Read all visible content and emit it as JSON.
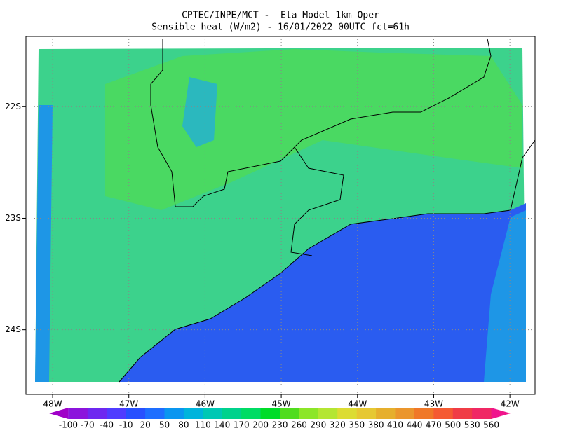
{
  "header": {
    "title": "CPTEC/INPE/MCT -  Eta Model 1km Oper",
    "subtitle": "Sensible heat (W/m2) - 16/01/2022 00UTC fct=61h"
  },
  "map": {
    "lonlim": [
      -48.35,
      -41.67
    ],
    "latlim": [
      -24.58,
      -21.37
    ],
    "lonticks": [
      {
        "value": -48,
        "label": "48W"
      },
      {
        "value": -47,
        "label": "47W"
      },
      {
        "value": -46,
        "label": "46W"
      },
      {
        "value": -45,
        "label": "45W"
      },
      {
        "value": -44,
        "label": "44W"
      },
      {
        "value": -43,
        "label": "43W"
      },
      {
        "value": -42,
        "label": "42W"
      }
    ],
    "latticks": [
      {
        "value": -22,
        "label": "22S"
      },
      {
        "value": -23,
        "label": "23S"
      },
      {
        "value": -24,
        "label": "24S"
      }
    ],
    "grid": true
  },
  "colorbar": {
    "labels": [
      -100,
      -70,
      -40,
      -10,
      20,
      50,
      80,
      110,
      140,
      170,
      200,
      230,
      260,
      290,
      320,
      350,
      380,
      410,
      440,
      470,
      500,
      530,
      560
    ],
    "colors": [
      "#a000c8",
      "#8c14dc",
      "#6e28f0",
      "#503cff",
      "#2850ff",
      "#1e6eff",
      "#0a96f0",
      "#00b4dc",
      "#00c8b4",
      "#00d28c",
      "#00dc64",
      "#00dc28",
      "#50dc1e",
      "#8ce628",
      "#b4e632",
      "#dcdc32",
      "#e6c832",
      "#e6af2d",
      "#eb962d",
      "#f07828",
      "#f55a32",
      "#f03c46",
      "#f02864",
      "#f0148c"
    ]
  }
}
